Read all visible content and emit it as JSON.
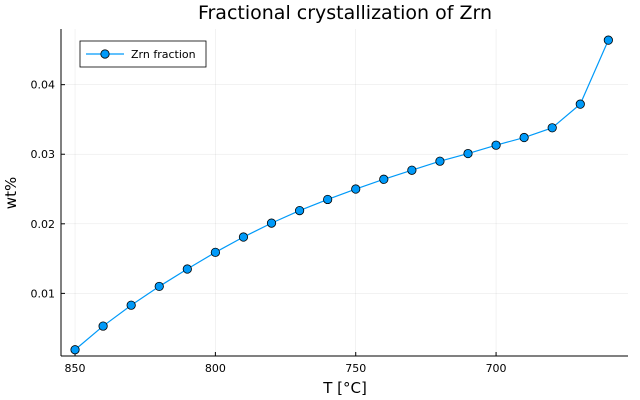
{
  "chart_data": {
    "type": "line",
    "title": "Fractional crystallization of Zrn",
    "xlabel": "T [°C]",
    "ylabel": "wt%",
    "x_reversed": true,
    "xlim": [
      855,
      653
    ],
    "ylim": [
      0.001,
      0.048
    ],
    "xticks": [
      850,
      800,
      750,
      700
    ],
    "xtick_labels": [
      "850",
      "800",
      "750",
      "700"
    ],
    "yticks": [
      0.01,
      0.02,
      0.03,
      0.04
    ],
    "ytick_labels": [
      "0.01",
      "0.02",
      "0.03",
      "0.04"
    ],
    "grid": true,
    "legend_position": "top-left",
    "series": [
      {
        "name": "Zrn fraction",
        "color": "#009af9",
        "marker": "circle",
        "x": [
          850,
          840,
          830,
          820,
          810,
          800,
          790,
          780,
          770,
          760,
          750,
          740,
          730,
          720,
          710,
          700,
          690,
          680,
          670,
          660
        ],
        "values": [
          0.0019,
          0.0053,
          0.0083,
          0.011,
          0.0135,
          0.0159,
          0.0181,
          0.0201,
          0.0219,
          0.0235,
          0.025,
          0.0264,
          0.0277,
          0.029,
          0.0301,
          0.0313,
          0.0324,
          0.0338,
          0.0372,
          0.0464
        ]
      }
    ]
  }
}
